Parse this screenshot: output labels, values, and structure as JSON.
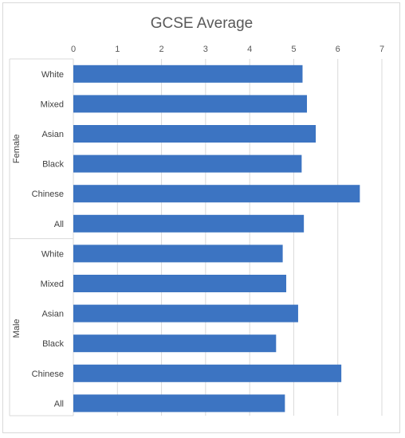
{
  "chart_data": {
    "type": "bar",
    "orientation": "horizontal",
    "title": "GCSE Average",
    "xlabel": "",
    "ylabel": "",
    "xlim": [
      0,
      7
    ],
    "x_ticks": [
      "0",
      "1",
      "2",
      "3",
      "4",
      "5",
      "6",
      "7"
    ],
    "x_axis_position": "top",
    "grid": true,
    "legend": "none",
    "bar_color": "#3c74c2",
    "groups": [
      {
        "name": "Female",
        "categories": [
          "White",
          "Mixed",
          "Asian",
          "Black",
          "Chinese",
          "All"
        ],
        "values": [
          5.2,
          5.3,
          5.5,
          5.18,
          6.5,
          5.23
        ]
      },
      {
        "name": "Male",
        "categories": [
          "White",
          "Mixed",
          "Asian",
          "Black",
          "Chinese",
          "All"
        ],
        "values": [
          4.75,
          4.83,
          5.1,
          4.6,
          6.08,
          4.8
        ]
      }
    ]
  }
}
